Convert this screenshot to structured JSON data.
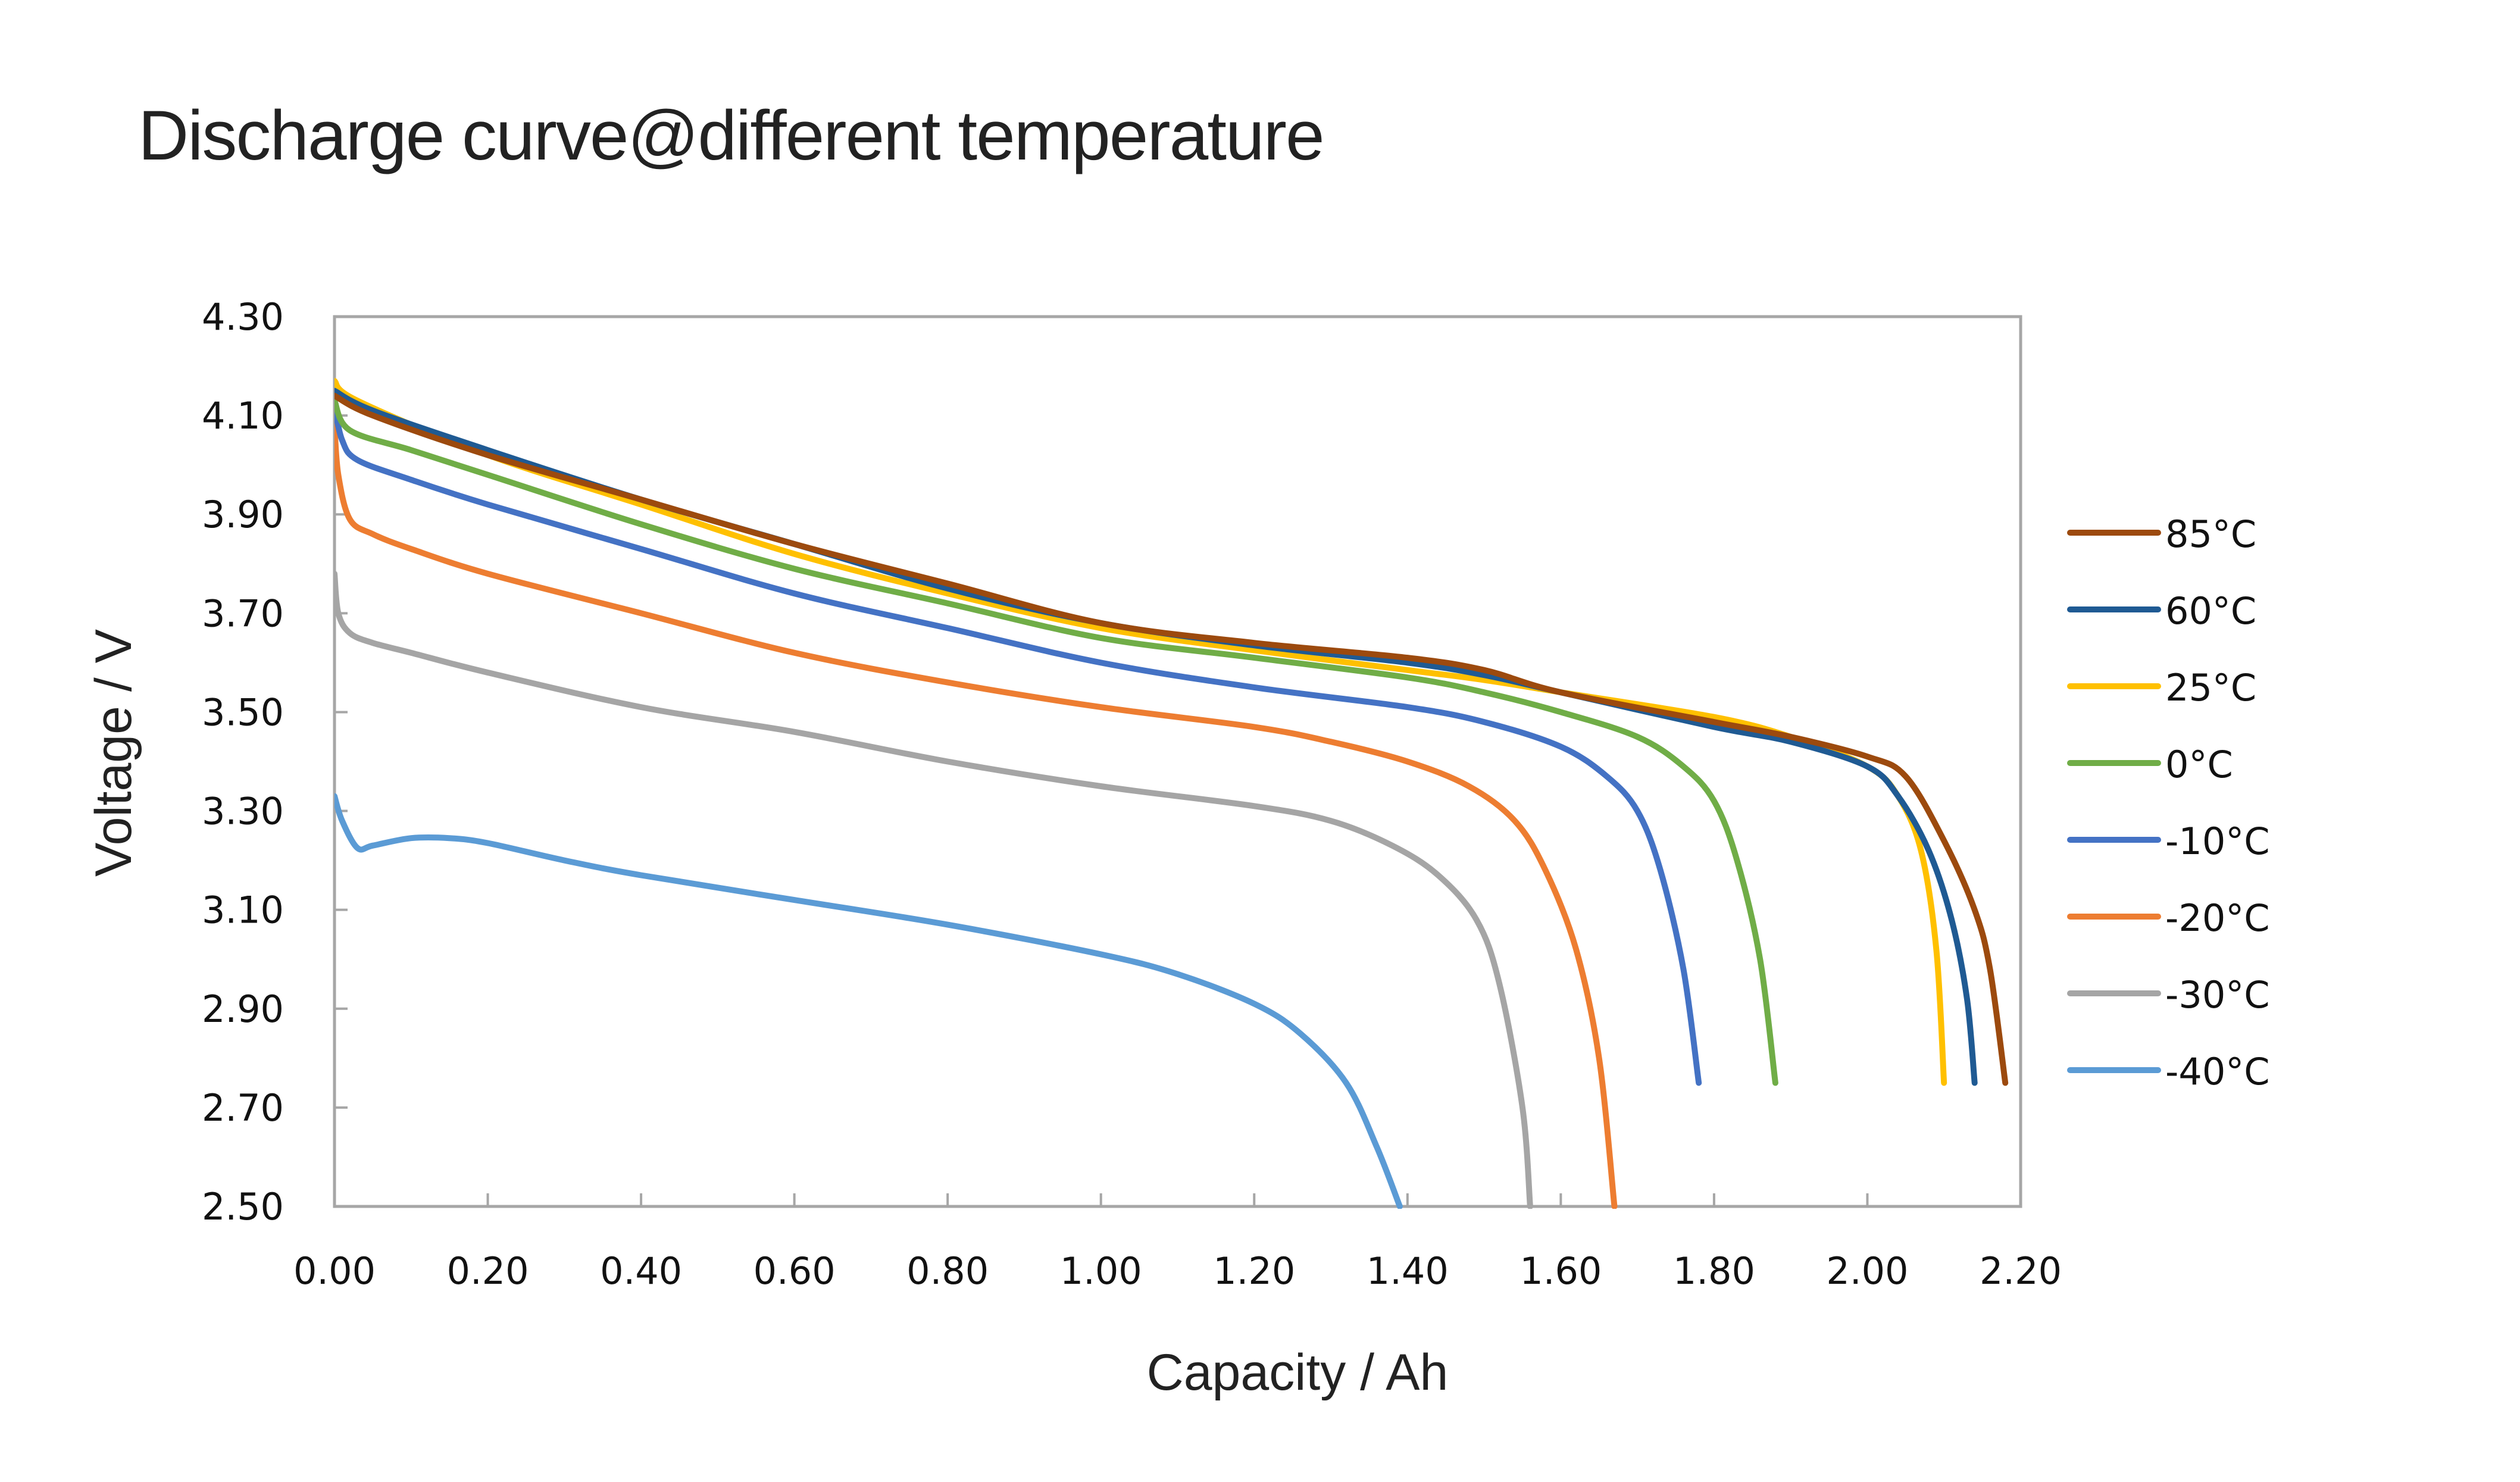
{
  "page": {
    "title": "Discharge curve@different temperature"
  },
  "chart_data": {
    "type": "line",
    "title": "Discharge curve@different temperature",
    "xlabel": "Capacity / Ah",
    "ylabel": "Voltage / V",
    "xlim": [
      0,
      2.2
    ],
    "ylim": [
      2.5,
      4.3
    ],
    "x_ticks": [
      "0.00",
      "0.20",
      "0.40",
      "0.60",
      "0.80",
      "1.00",
      "1.20",
      "1.40",
      "1.60",
      "1.80",
      "2.00",
      "2.20"
    ],
    "y_ticks": [
      "4.30",
      "4.10",
      "3.90",
      "3.70",
      "3.50",
      "3.30",
      "3.10",
      "2.90",
      "2.70",
      "2.50"
    ],
    "grid": false,
    "legend_position": "right",
    "series": [
      {
        "name": "85°C",
        "color": "#9C4A0E",
        "points": [
          [
            0,
            4.14
          ],
          [
            0.05,
            4.1
          ],
          [
            0.2,
            4.02
          ],
          [
            0.4,
            3.93
          ],
          [
            0.6,
            3.84
          ],
          [
            0.8,
            3.76
          ],
          [
            1.0,
            3.68
          ],
          [
            1.2,
            3.64
          ],
          [
            1.4,
            3.61
          ],
          [
            1.5,
            3.585
          ],
          [
            1.6,
            3.54
          ],
          [
            1.8,
            3.48
          ],
          [
            1.9,
            3.45
          ],
          [
            2.0,
            3.41
          ],
          [
            2.05,
            3.37
          ],
          [
            2.1,
            3.24
          ],
          [
            2.14,
            3.1
          ],
          [
            2.16,
            2.98
          ],
          [
            2.18,
            2.75
          ]
        ]
      },
      {
        "name": "60°C",
        "color": "#1F5A93",
        "points": [
          [
            0,
            4.15
          ],
          [
            0.05,
            4.11
          ],
          [
            0.2,
            4.03
          ],
          [
            0.4,
            3.93
          ],
          [
            0.6,
            3.84
          ],
          [
            0.8,
            3.75
          ],
          [
            1.0,
            3.68
          ],
          [
            1.2,
            3.635
          ],
          [
            1.4,
            3.6
          ],
          [
            1.5,
            3.575
          ],
          [
            1.6,
            3.54
          ],
          [
            1.8,
            3.47
          ],
          [
            1.9,
            3.44
          ],
          [
            2.0,
            3.39
          ],
          [
            2.04,
            3.33
          ],
          [
            2.08,
            3.22
          ],
          [
            2.11,
            3.08
          ],
          [
            2.13,
            2.92
          ],
          [
            2.14,
            2.75
          ]
        ]
      },
      {
        "name": "25°C",
        "color": "#FFC000",
        "points": [
          [
            0,
            4.17
          ],
          [
            0.03,
            4.13
          ],
          [
            0.2,
            4.02
          ],
          [
            0.4,
            3.92
          ],
          [
            0.6,
            3.82
          ],
          [
            0.8,
            3.74
          ],
          [
            1.0,
            3.67
          ],
          [
            1.2,
            3.625
          ],
          [
            1.4,
            3.585
          ],
          [
            1.5,
            3.565
          ],
          [
            1.6,
            3.54
          ],
          [
            1.8,
            3.49
          ],
          [
            1.9,
            3.45
          ],
          [
            2.0,
            3.39
          ],
          [
            2.04,
            3.33
          ],
          [
            2.07,
            3.22
          ],
          [
            2.09,
            3.02
          ],
          [
            2.1,
            2.75
          ]
        ]
      },
      {
        "name": "0°C",
        "color": "#70AD47",
        "points": [
          [
            0,
            4.13
          ],
          [
            0.02,
            4.07
          ],
          [
            0.1,
            4.03
          ],
          [
            0.2,
            3.98
          ],
          [
            0.4,
            3.88
          ],
          [
            0.6,
            3.79
          ],
          [
            0.8,
            3.72
          ],
          [
            1.0,
            3.65
          ],
          [
            1.2,
            3.61
          ],
          [
            1.4,
            3.57
          ],
          [
            1.5,
            3.54
          ],
          [
            1.6,
            3.5
          ],
          [
            1.7,
            3.45
          ],
          [
            1.76,
            3.39
          ],
          [
            1.8,
            3.32
          ],
          [
            1.83,
            3.2
          ],
          [
            1.86,
            3.0
          ],
          [
            1.88,
            2.75
          ]
        ]
      },
      {
        "name": "-10°C",
        "color": "#4472C4",
        "points": [
          [
            0,
            4.12
          ],
          [
            0.01,
            4.05
          ],
          [
            0.03,
            4.01
          ],
          [
            0.1,
            3.97
          ],
          [
            0.2,
            3.92
          ],
          [
            0.4,
            3.83
          ],
          [
            0.6,
            3.74
          ],
          [
            0.8,
            3.67
          ],
          [
            1.0,
            3.6
          ],
          [
            1.2,
            3.55
          ],
          [
            1.4,
            3.51
          ],
          [
            1.5,
            3.48
          ],
          [
            1.6,
            3.43
          ],
          [
            1.66,
            3.37
          ],
          [
            1.7,
            3.3
          ],
          [
            1.73,
            3.18
          ],
          [
            1.76,
            2.98
          ],
          [
            1.78,
            2.75
          ]
        ]
      },
      {
        "name": "-20°C",
        "color": "#ED7D31",
        "points": [
          [
            0,
            4.08
          ],
          [
            0.005,
            3.98
          ],
          [
            0.02,
            3.89
          ],
          [
            0.05,
            3.86
          ],
          [
            0.1,
            3.83
          ],
          [
            0.2,
            3.78
          ],
          [
            0.4,
            3.7
          ],
          [
            0.6,
            3.62
          ],
          [
            0.8,
            3.56
          ],
          [
            1.0,
            3.51
          ],
          [
            1.2,
            3.47
          ],
          [
            1.3,
            3.44
          ],
          [
            1.4,
            3.4
          ],
          [
            1.48,
            3.35
          ],
          [
            1.54,
            3.28
          ],
          [
            1.58,
            3.18
          ],
          [
            1.62,
            3.02
          ],
          [
            1.65,
            2.8
          ],
          [
            1.67,
            2.5
          ]
        ]
      },
      {
        "name": "-30°C",
        "color": "#A5A5A5",
        "points": [
          [
            0,
            3.78
          ],
          [
            0.005,
            3.7
          ],
          [
            0.02,
            3.66
          ],
          [
            0.05,
            3.64
          ],
          [
            0.1,
            3.62
          ],
          [
            0.2,
            3.58
          ],
          [
            0.4,
            3.51
          ],
          [
            0.6,
            3.46
          ],
          [
            0.8,
            3.4
          ],
          [
            1.0,
            3.35
          ],
          [
            1.2,
            3.31
          ],
          [
            1.3,
            3.28
          ],
          [
            1.38,
            3.23
          ],
          [
            1.44,
            3.17
          ],
          [
            1.49,
            3.08
          ],
          [
            1.52,
            2.95
          ],
          [
            1.55,
            2.7
          ],
          [
            1.56,
            2.5
          ]
        ]
      },
      {
        "name": "-40°C",
        "color": "#5B9BD5",
        "points": [
          [
            0,
            3.33
          ],
          [
            0.01,
            3.28
          ],
          [
            0.03,
            3.225
          ],
          [
            0.05,
            3.23
          ],
          [
            0.1,
            3.245
          ],
          [
            0.15,
            3.245
          ],
          [
            0.2,
            3.235
          ],
          [
            0.3,
            3.2
          ],
          [
            0.4,
            3.17
          ],
          [
            0.6,
            3.12
          ],
          [
            0.8,
            3.07
          ],
          [
            1.0,
            3.01
          ],
          [
            1.1,
            2.97
          ],
          [
            1.2,
            2.91
          ],
          [
            1.26,
            2.85
          ],
          [
            1.32,
            2.75
          ],
          [
            1.36,
            2.62
          ],
          [
            1.39,
            2.5
          ]
        ]
      }
    ]
  }
}
